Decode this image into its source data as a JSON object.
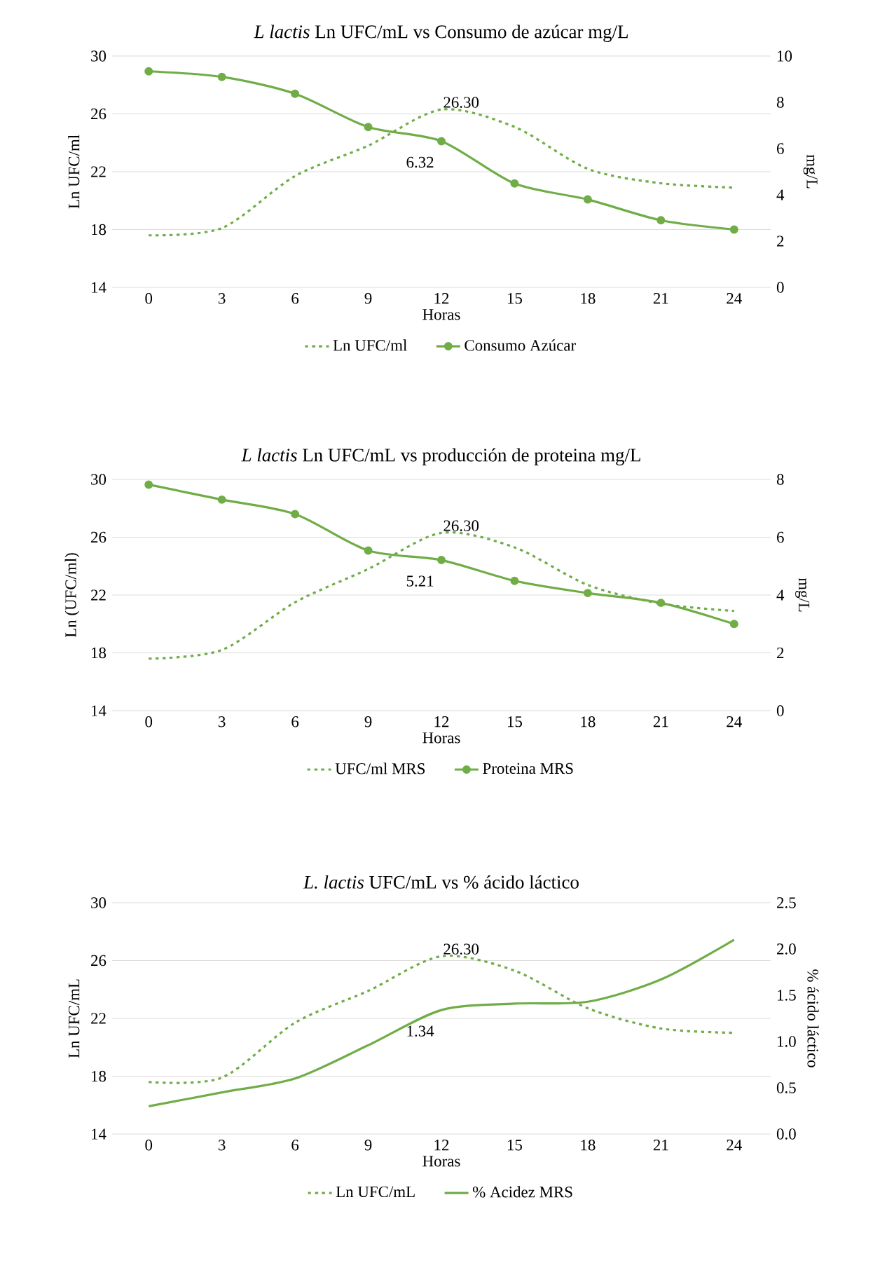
{
  "chart_data": [
    {
      "type": "line",
      "title": "*L lactis* Ln UFC/mL vs Consumo de azúcar mg/L",
      "xlabel": "Horas",
      "ylabel": "Ln  UFC/ml",
      "y2label": "mg/L",
      "categories": [
        "0",
        "3",
        "6",
        "9",
        "12",
        "15",
        "18",
        "21",
        "24"
      ],
      "series": [
        {
          "name": "Ln UFC/ml",
          "color": "#70ad47",
          "line_style": "dotted",
          "marker": "none",
          "values": [
            17.6,
            18.1,
            21.7,
            23.8,
            26.3,
            25.1,
            22.2,
            21.2,
            20.9
          ]
        },
        {
          "name": "Consumo Azúcar",
          "color": "#70ad47",
          "line_style": "solid",
          "marker": "circle",
          "axis": "y2",
          "values": [
            9.34,
            9.1,
            8.37,
            6.93,
            6.32,
            4.49,
            3.8,
            2.9,
            2.5
          ]
        }
      ],
      "ylim": [
        14,
        30
      ],
      "yticks": [
        14,
        18,
        22,
        26,
        30
      ],
      "y2lim": [
        0,
        10
      ],
      "y2ticks": [
        0,
        2,
        4,
        6,
        8,
        10
      ],
      "annotations": [
        {
          "text": "26.30",
          "x": "12",
          "y": 26.3
        },
        "6.32"
      ],
      "grid": "y",
      "legend": "bottom"
    },
    {
      "type": "line",
      "title": "*L lactis* Ln UFC/mL vs producción de proteina mg/L",
      "xlabel": "Horas",
      "ylabel": "Ln (UFC/ml)",
      "y2label": "mg/L",
      "categories": [
        "0",
        "3",
        "6",
        "9",
        "12",
        "15",
        "18",
        "21",
        "24"
      ],
      "series": [
        {
          "name": "UFC/ml MRS",
          "color": "#70ad47",
          "line_style": "dotted",
          "marker": "none",
          "values": [
            17.6,
            18.2,
            21.5,
            23.8,
            26.3,
            25.3,
            22.7,
            21.4,
            20.9
          ]
        },
        {
          "name": "Proteina MRS",
          "color": "#70ad47",
          "line_style": "solid",
          "marker": "circle",
          "axis": "y2",
          "values": [
            7.82,
            7.3,
            6.8,
            5.54,
            5.21,
            4.49,
            4.07,
            3.73,
            3.0
          ]
        }
      ],
      "ylim": [
        14,
        30
      ],
      "yticks": [
        14,
        18,
        22,
        26,
        30
      ],
      "y2lim": [
        0,
        8
      ],
      "y2ticks": [
        0,
        2,
        4,
        6,
        8
      ],
      "annotations": [
        {
          "text": "26.30",
          "x": "12",
          "y": 26.3
        },
        "5.21"
      ],
      "grid": "y",
      "legend": "bottom"
    },
    {
      "type": "line",
      "title": "*L. lactis* UFC/mL vs % ácido láctico",
      "xlabel": "Horas",
      "ylabel": "Ln UFC/mL",
      "y2label": "% ácido láctico",
      "categories": [
        "0",
        "3",
        "6",
        "9",
        "12",
        "15",
        "18",
        "21",
        "24"
      ],
      "series": [
        {
          "name": "Ln UFC/mL",
          "color": "#70ad47",
          "line_style": "dotted",
          "marker": "none",
          "values": [
            17.6,
            17.9,
            21.7,
            23.9,
            26.3,
            25.3,
            22.7,
            21.3,
            21.0
          ]
        },
        {
          "name": "% Acidez MRS",
          "color": "#70ad47",
          "line_style": "solid",
          "marker": "none",
          "axis": "y2",
          "values": [
            0.3,
            0.45,
            0.6,
            0.96,
            1.34,
            1.41,
            1.43,
            1.67,
            2.1
          ]
        }
      ],
      "ylim": [
        14,
        30
      ],
      "yticks": [
        14,
        18,
        22,
        26,
        30
      ],
      "y2lim": [
        0,
        2.5
      ],
      "y2ticks": [
        {
          "value": 0,
          "label": "0.0"
        },
        0.5,
        {
          "value": 1,
          "label": "1.0"
        },
        1.5,
        {
          "value": 2,
          "label": "2.0"
        },
        2.5
      ],
      "annotations": [
        {
          "text": "26.30",
          "x": "12",
          "y": 26.3
        },
        "1.34"
      ],
      "grid": "y",
      "legend": "bottom"
    }
  ]
}
